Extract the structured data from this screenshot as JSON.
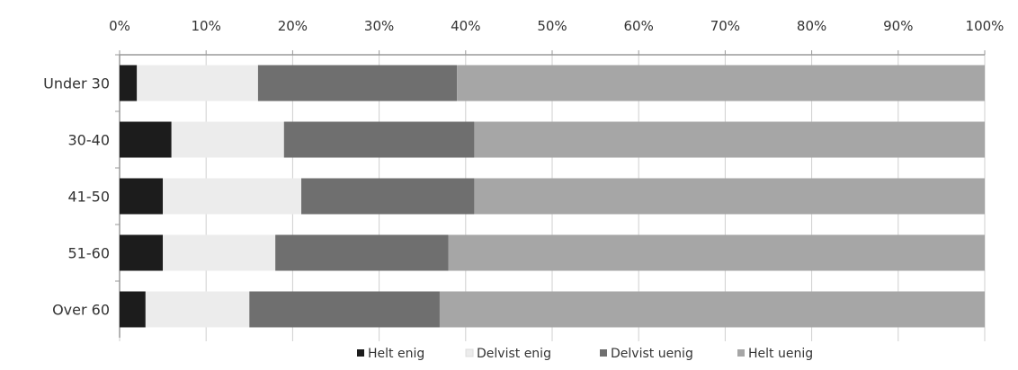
{
  "chart_data": {
    "type": "bar",
    "orientation": "horizontal",
    "stacked": true,
    "normalized": true,
    "categories": [
      "Under 30",
      "30-40",
      "41-50",
      "51-60",
      "Over 60"
    ],
    "x_ticks": [
      "0%",
      "10%",
      "20%",
      "30%",
      "40%",
      "50%",
      "60%",
      "70%",
      "80%",
      "90%",
      "100%"
    ],
    "xlim": [
      0,
      100
    ],
    "x_axis_position": "top",
    "grid": true,
    "legend_position": "bottom",
    "series": [
      {
        "name": "Helt enig",
        "color": "#1c1c1c",
        "values": [
          2,
          6,
          5,
          5,
          3
        ]
      },
      {
        "name": "Delvist enig",
        "color": "#ececec",
        "values": [
          14,
          13,
          16,
          13,
          12
        ]
      },
      {
        "name": "Delvist uenig",
        "color": "#6f6f6f",
        "values": [
          23,
          22,
          20,
          20,
          22
        ]
      },
      {
        "name": "Helt uenig",
        "color": "#a6a6a6",
        "values": [
          61,
          59,
          59,
          62,
          63
        ]
      }
    ]
  }
}
